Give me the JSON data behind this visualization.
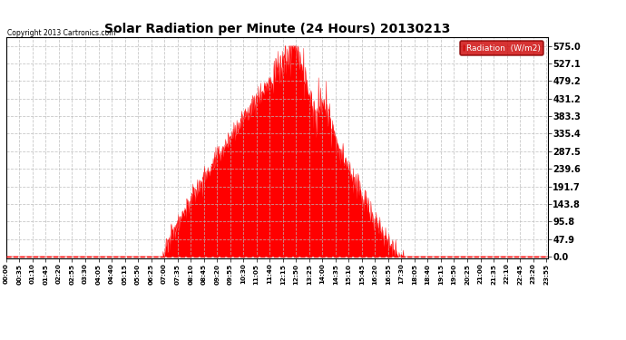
{
  "title": "Solar Radiation per Minute (24 Hours) 20130213",
  "copyright_text": "Copyright 2013 Cartronics.com",
  "legend_label": "Radiation  (W/m2)",
  "fill_color": "#FF0000",
  "background_color": "#FFFFFF",
  "grid_color": "#BBBBBB",
  "zero_line_color": "#FF0000",
  "yticks": [
    0.0,
    47.9,
    95.8,
    143.8,
    191.7,
    239.6,
    287.5,
    335.4,
    383.3,
    431.2,
    479.2,
    527.1,
    575.0
  ],
  "ymax": 600,
  "num_minutes": 1440,
  "sunrise_minute": 415,
  "sunset_minute": 1055,
  "peak_minute": 770,
  "peak_value": 575.0,
  "xtick_interval": 35,
  "xtick_labels": [
    "00:00",
    "00:35",
    "01:10",
    "01:45",
    "02:20",
    "02:55",
    "03:30",
    "04:05",
    "04:40",
    "05:15",
    "05:50",
    "06:25",
    "07:00",
    "07:35",
    "08:10",
    "08:45",
    "09:20",
    "09:55",
    "10:30",
    "11:05",
    "11:40",
    "12:15",
    "12:50",
    "13:25",
    "14:00",
    "14:35",
    "15:10",
    "15:45",
    "16:20",
    "16:55",
    "17:30",
    "18:05",
    "18:40",
    "19:15",
    "19:50",
    "20:25",
    "21:00",
    "21:35",
    "22:10",
    "22:45",
    "23:20",
    "23:55"
  ]
}
